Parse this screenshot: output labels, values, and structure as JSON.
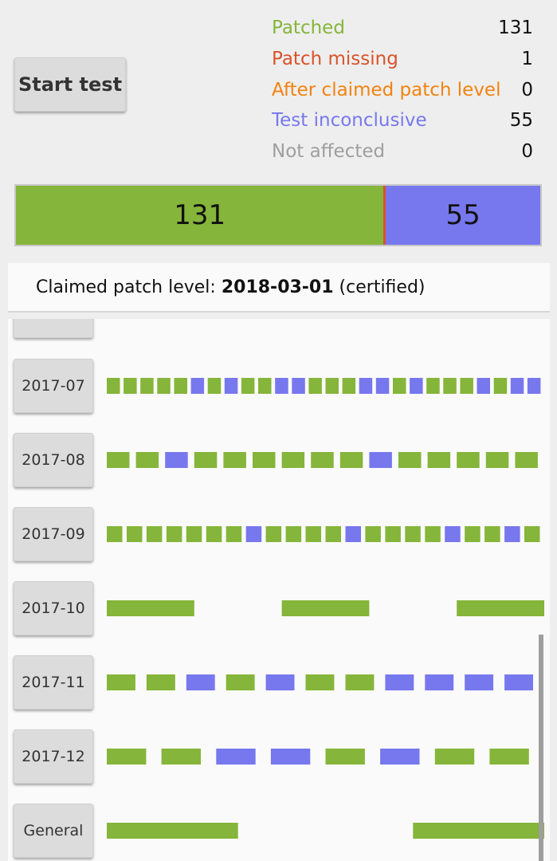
{
  "colors": {
    "patched": "#85b53a",
    "missing": "#d9532b",
    "after": "#f2830f",
    "inconclusive": "#7778ee",
    "not_affected": "#9e9e9e"
  },
  "start_button": {
    "label": "Start test"
  },
  "legend": [
    {
      "key": "patched",
      "label": "Patched",
      "count": "131"
    },
    {
      "key": "missing",
      "label": "Patch missing",
      "count": "1"
    },
    {
      "key": "after",
      "label": "After claimed patch level",
      "count": "0"
    },
    {
      "key": "inconclusive",
      "label": "Test inconclusive",
      "count": "55"
    },
    {
      "key": "not_affected",
      "label": "Not affected",
      "count": "0"
    }
  ],
  "summary_bar": {
    "patched": 131,
    "missing": 1,
    "inconclusive": 55,
    "patched_label": "131",
    "inconclusive_label": "55"
  },
  "patch_level": {
    "prefix": "Claimed patch level: ",
    "value": "2018-03-01",
    "suffix": " (certified)"
  },
  "rows": [
    {
      "label": "2017-07",
      "pattern": [
        "p",
        "p",
        "p",
        "p",
        "p",
        "i",
        "p",
        "i",
        "p",
        "p",
        "i",
        "i",
        "p",
        "p",
        "p",
        "i",
        "i",
        "p",
        "i",
        "p",
        "p",
        "p",
        "i",
        "p",
        "i",
        "i"
      ]
    },
    {
      "label": "2017-08",
      "pattern": [
        "p",
        "p",
        "i",
        "p",
        "p",
        "p",
        "p",
        "p",
        "p",
        "i",
        "p",
        "p",
        "p",
        "p",
        "p"
      ]
    },
    {
      "label": "2017-09",
      "pattern": [
        "p",
        "p",
        "p",
        "p",
        "p",
        "p",
        "p",
        "i",
        "p",
        "p",
        "p",
        "p",
        "i",
        "p",
        "p",
        "p",
        "p",
        "i",
        "p",
        "p",
        "i",
        "p"
      ]
    },
    {
      "label": "2017-10",
      "pattern": [
        "p",
        "p",
        "p"
      ]
    },
    {
      "label": "2017-11",
      "pattern": [
        "p",
        "p",
        "i",
        "p",
        "i",
        "p",
        "p",
        "i",
        "i",
        "i",
        "i"
      ]
    },
    {
      "label": "2017-12",
      "pattern": [
        "p",
        "p",
        "i",
        "i",
        "p",
        "i",
        "p",
        "p"
      ]
    },
    {
      "label": "General",
      "pattern": [
        "p",
        "p"
      ]
    }
  ]
}
